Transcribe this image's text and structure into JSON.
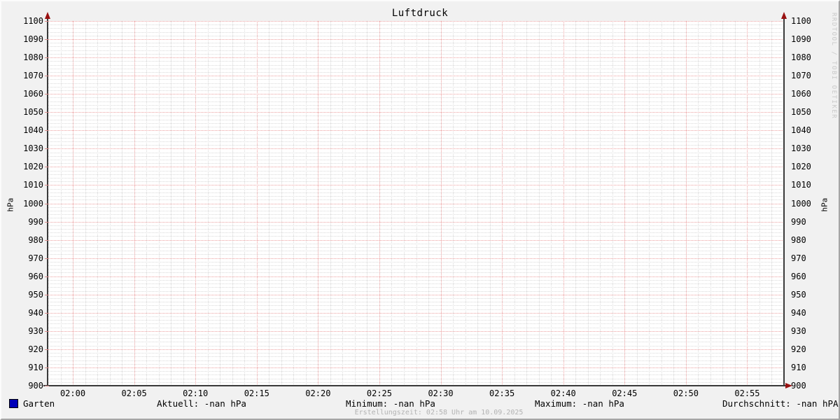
{
  "title": "Luftdruck",
  "watermark": "RRDTOOL / TOBI OETIKER",
  "y_axis": {
    "label_left": "hPa",
    "label_right": "hPa",
    "ticks": [
      "900",
      "910",
      "920",
      "930",
      "940",
      "950",
      "960",
      "970",
      "980",
      "990",
      "1000",
      "1010",
      "1020",
      "1030",
      "1040",
      "1050",
      "1060",
      "1070",
      "1080",
      "1090",
      "1100"
    ]
  },
  "x_axis": {
    "ticks": [
      "02:00",
      "02:05",
      "02:10",
      "02:15",
      "02:20",
      "02:25",
      "02:30",
      "02:35",
      "02:40",
      "02:45",
      "02:50",
      "02:55"
    ]
  },
  "legend": {
    "series_label": "Garten",
    "swatch_color": "#0000b8"
  },
  "stats": [
    {
      "text": "Aktuell: -nan hPa"
    },
    {
      "text": "Minimum: -nan hPa"
    },
    {
      "text": "Maximum: -nan hPa"
    },
    {
      "text": "Durchschnitt: -nan hPA"
    }
  ],
  "footer": "Erstellungszeit: 02:58 Uhr am 10.09.2025",
  "colors": {
    "grid_major": "#ec9f9f",
    "grid_minor": "#d9d9d9",
    "axis": "#3a3a3a",
    "arrow": "#991111",
    "background": "#f1f1f1",
    "plot_background": "#ffffff",
    "series_garten": "#0000b8"
  },
  "chart_data": {
    "type": "line",
    "title": "Luftdruck",
    "ylabel": "hPa",
    "ylabel_right": "hPa",
    "ylim": [
      900,
      1100
    ],
    "y_tick_step": 10,
    "y_minor_step": 2,
    "x_tick_labels": [
      "02:00",
      "02:05",
      "02:10",
      "02:15",
      "02:20",
      "02:25",
      "02:30",
      "02:35",
      "02:40",
      "02:45",
      "02:50",
      "02:55"
    ],
    "x_major_step_minutes": 5,
    "x_minor_step_minutes": 1,
    "grid": true,
    "legend_position": "bottom-left",
    "series": [
      {
        "name": "Garten",
        "color": "#0000b8",
        "values": [],
        "note": "no data drawn; all values are -nan"
      }
    ],
    "stats": {
      "aktuell": "-nan hPa",
      "minimum": "-nan hPa",
      "maximum": "-nan hPa",
      "durchschnitt": "-nan hPA"
    },
    "created": "02:58 Uhr am 10.09.2025"
  }
}
